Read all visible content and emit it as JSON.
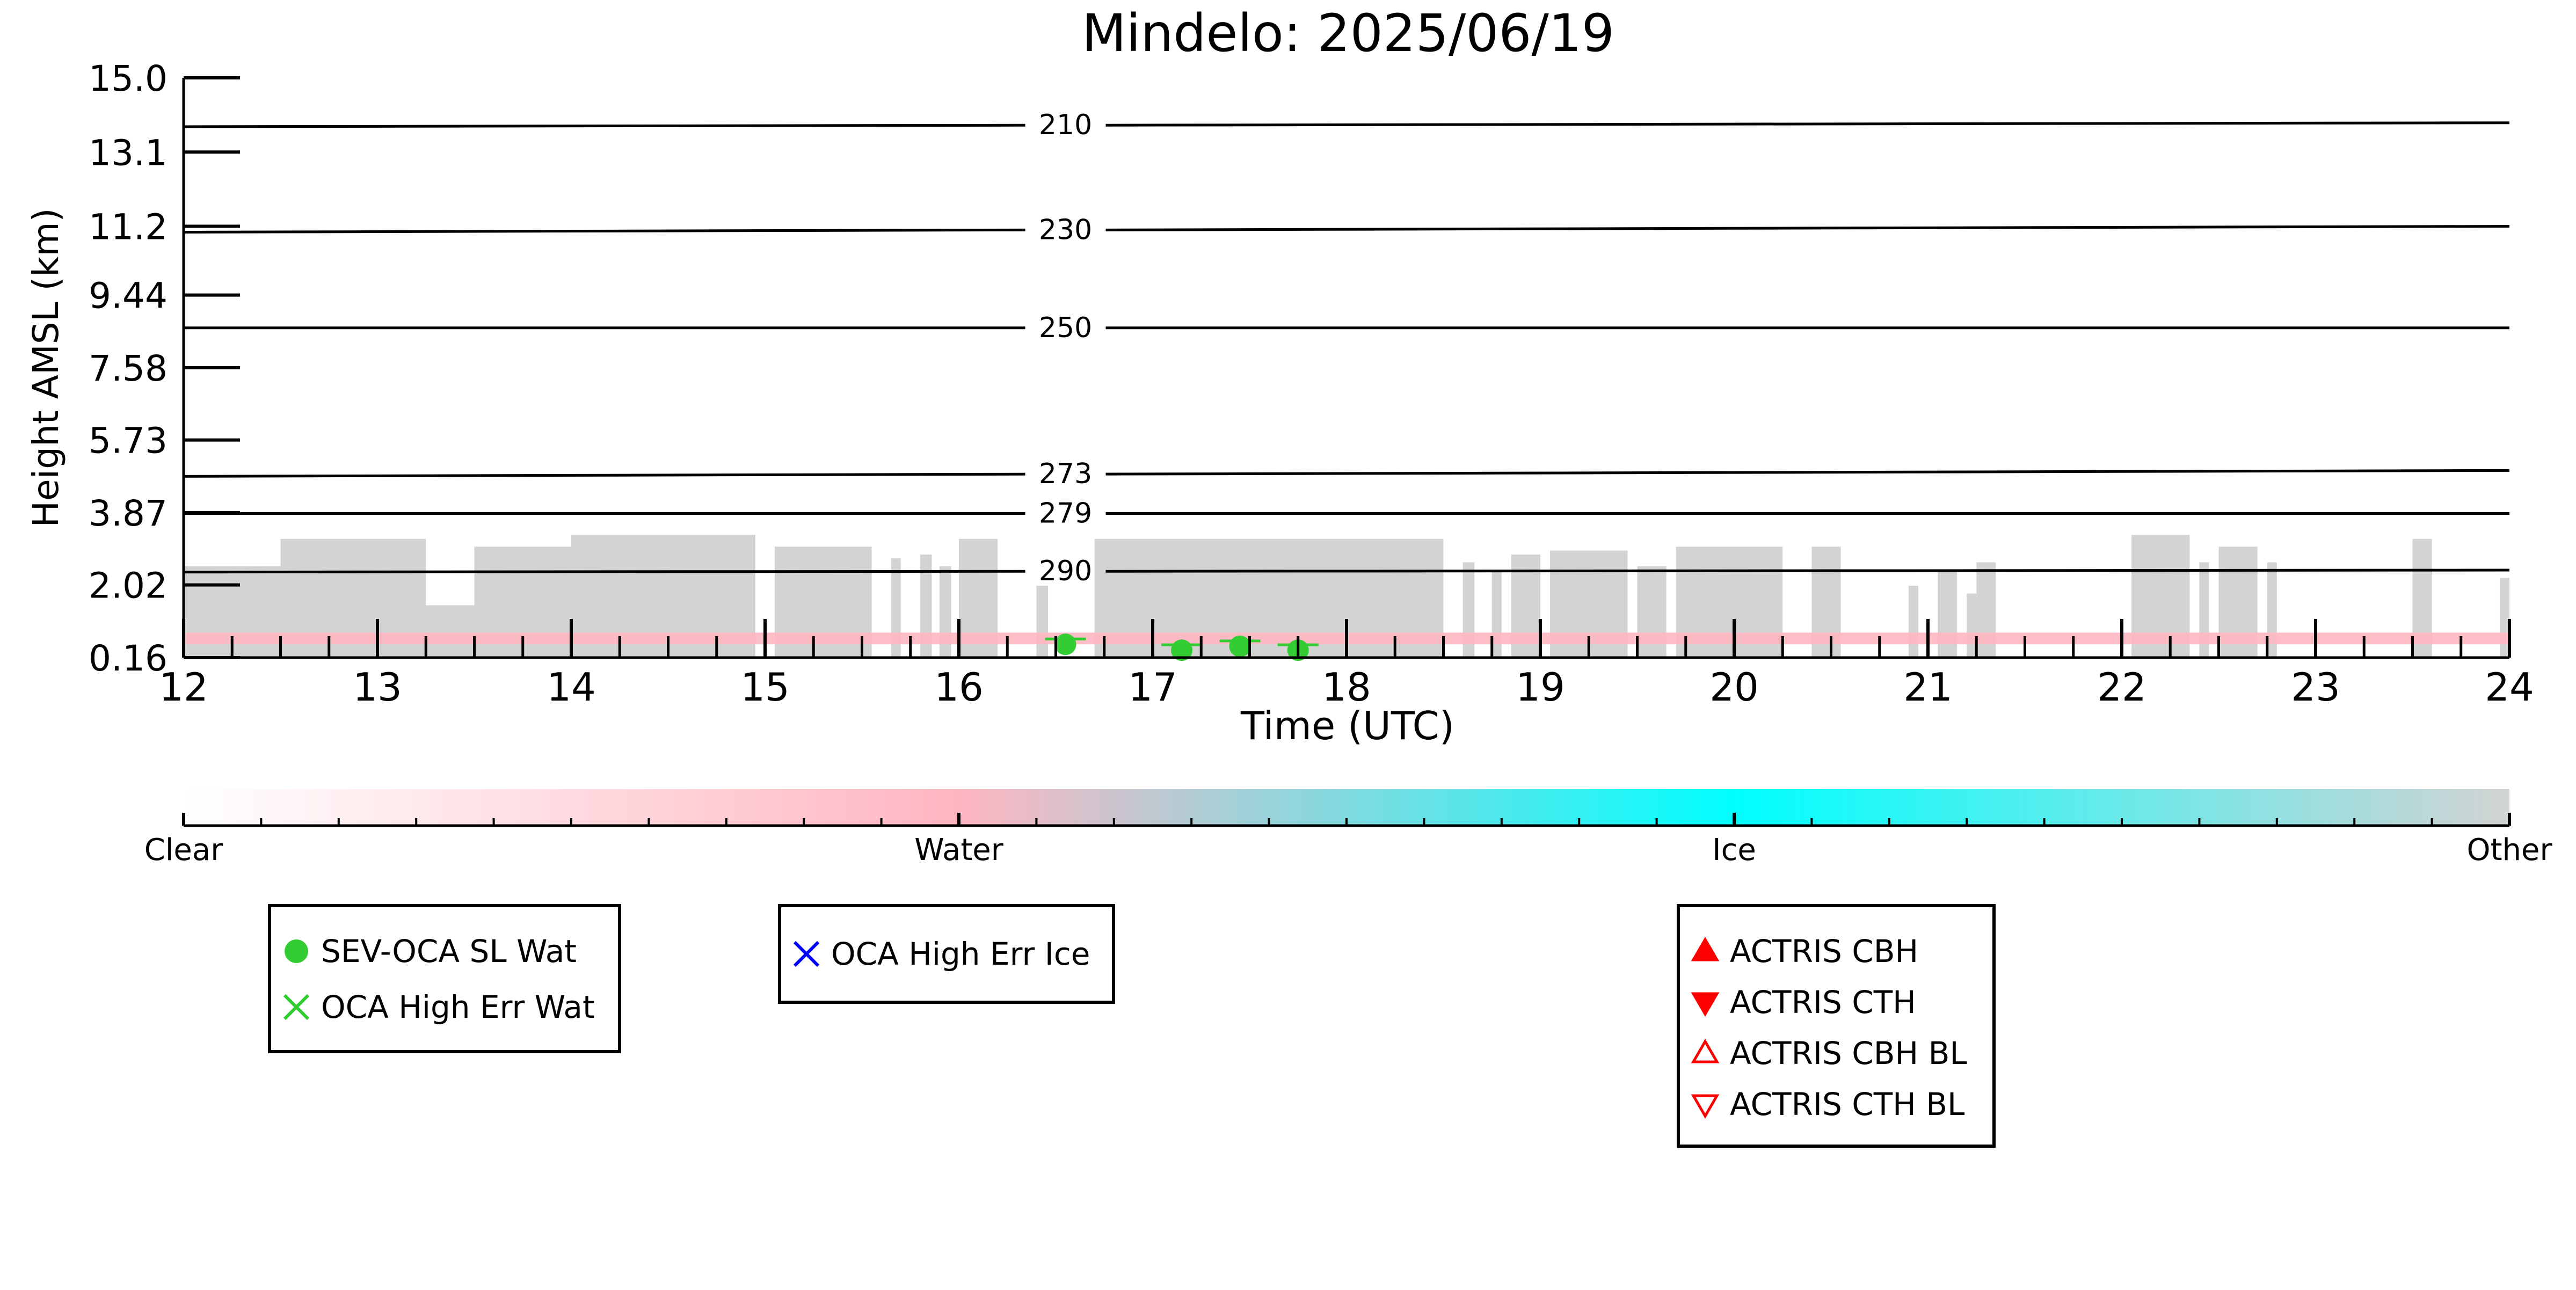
{
  "chart_data": {
    "type": "heatmap",
    "title": "Mindelo: 2025/06/19",
    "xlabel": "Time (UTC)",
    "ylabel": "Height AMSL (km)",
    "xlim": [
      12,
      24
    ],
    "ylim": [
      0.16,
      15.0
    ],
    "x_ticks": [
      "12",
      "13",
      "14",
      "15",
      "16",
      "17",
      "18",
      "19",
      "20",
      "21",
      "22",
      "23",
      "24"
    ],
    "y_ticks": [
      "0.16",
      "2.02",
      "3.87",
      "5.73",
      "7.58",
      "9.44",
      "11.2",
      "13.1",
      "15.0"
    ],
    "y_tick_values": [
      0.16,
      2.02,
      3.87,
      5.73,
      7.58,
      9.44,
      11.2,
      13.1,
      15.0
    ],
    "grid": false,
    "colorbar": {
      "labels": [
        "Clear",
        "Water",
        "Ice",
        "Other"
      ],
      "stops": [
        {
          "pos": 0.0,
          "color": "#ffffff"
        },
        {
          "pos": 0.333,
          "color": "#ffb6c1"
        },
        {
          "pos": 0.667,
          "color": "#00ffff"
        },
        {
          "pos": 1.0,
          "color": "#d3d3d3"
        }
      ],
      "minor_ticks": 30
    },
    "category_colors": {
      "clear": "#ffffff",
      "water": "#ffb6c1",
      "ice": "#00ffff",
      "other": "#d3d3d3"
    },
    "isotherms": [
      {
        "label": "210",
        "start_height": 13.75,
        "end_height": 13.85
      },
      {
        "label": "230",
        "start_height": 11.05,
        "end_height": 11.2
      },
      {
        "label": "250",
        "start_height": 8.6,
        "end_height": 8.6
      },
      {
        "label": "273",
        "start_height": 4.8,
        "end_height": 4.95
      },
      {
        "label": "279",
        "start_height": 3.85,
        "end_height": 3.85
      },
      {
        "label": "290",
        "start_height": 2.35,
        "end_height": 2.4
      }
    ],
    "isotherm_label_x": 16.55,
    "cloud_segments": [
      {
        "start": 12.0,
        "end": 12.5,
        "top": 2.5
      },
      {
        "start": 12.5,
        "end": 13.25,
        "top": 3.2
      },
      {
        "start": 13.25,
        "end": 13.5,
        "top": 1.5
      },
      {
        "start": 13.5,
        "end": 14.0,
        "top": 3.0
      },
      {
        "start": 14.0,
        "end": 14.95,
        "top": 3.3
      },
      {
        "start": 15.05,
        "end": 15.55,
        "top": 3.0
      },
      {
        "start": 15.65,
        "end": 15.7,
        "top": 2.7
      },
      {
        "start": 15.8,
        "end": 15.86,
        "top": 2.8
      },
      {
        "start": 15.9,
        "end": 15.96,
        "top": 2.5
      },
      {
        "start": 16.0,
        "end": 16.2,
        "top": 3.2
      },
      {
        "start": 16.4,
        "end": 16.46,
        "top": 2.0
      },
      {
        "start": 16.7,
        "end": 18.5,
        "top": 3.2
      },
      {
        "start": 18.6,
        "end": 18.66,
        "top": 2.6
      },
      {
        "start": 18.75,
        "end": 18.8,
        "top": 2.4
      },
      {
        "start": 18.85,
        "end": 19.0,
        "top": 2.8
      },
      {
        "start": 19.05,
        "end": 19.45,
        "top": 2.9
      },
      {
        "start": 19.5,
        "end": 19.65,
        "top": 2.5
      },
      {
        "start": 19.7,
        "end": 20.25,
        "top": 3.0
      },
      {
        "start": 20.4,
        "end": 20.55,
        "top": 3.0
      },
      {
        "start": 20.9,
        "end": 20.95,
        "top": 2.0
      },
      {
        "start": 21.05,
        "end": 21.15,
        "top": 2.4
      },
      {
        "start": 21.2,
        "end": 21.25,
        "top": 1.8
      },
      {
        "start": 21.25,
        "end": 21.35,
        "top": 2.6
      },
      {
        "start": 22.05,
        "end": 22.35,
        "top": 3.3
      },
      {
        "start": 22.4,
        "end": 22.45,
        "top": 2.6
      },
      {
        "start": 22.5,
        "end": 22.7,
        "top": 3.0
      },
      {
        "start": 22.75,
        "end": 22.8,
        "top": 2.6
      },
      {
        "start": 23.5,
        "end": 23.6,
        "top": 3.2
      },
      {
        "start": 23.95,
        "end": 24.0,
        "top": 2.2
      }
    ],
    "water_band": {
      "bottom": 0.5,
      "top": 0.8
    },
    "sev_oca_points": [
      {
        "time": 16.55,
        "height": 0.5
      },
      {
        "time": 17.15,
        "height": 0.35
      },
      {
        "time": 17.45,
        "height": 0.45
      },
      {
        "time": 17.75,
        "height": 0.35
      }
    ],
    "legends": [
      {
        "id": "sev-oca-legend",
        "entries": [
          {
            "label": "SEV-OCA SL Wat",
            "marker": "circle",
            "color": "#33cc33"
          },
          {
            "label": "OCA High Err Wat",
            "marker": "x",
            "color": "#33cc33"
          }
        ]
      },
      {
        "id": "oca-ice-legend",
        "entries": [
          {
            "label": "OCA High Err Ice",
            "marker": "x",
            "color": "#0000ff"
          }
        ]
      },
      {
        "id": "actris-legend",
        "entries": [
          {
            "label": "ACTRIS CBH",
            "marker": "triangle-up-filled",
            "color": "#ff0000"
          },
          {
            "label": "ACTRIS CTH",
            "marker": "triangle-down-filled",
            "color": "#ff0000"
          },
          {
            "label": "ACTRIS CBH BL",
            "marker": "triangle-up-open",
            "color": "#ff0000"
          },
          {
            "label": "ACTRIS CTH BL",
            "marker": "triangle-down-open",
            "color": "#ff0000"
          }
        ]
      }
    ]
  }
}
